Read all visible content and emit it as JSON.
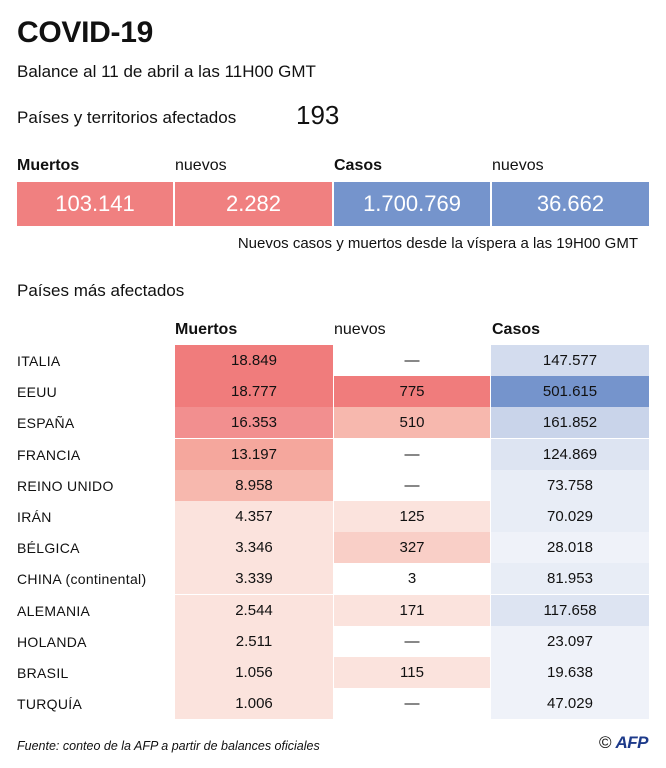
{
  "header": {
    "title": "COVID-19",
    "subtitle": "Balance al 11 de abril a las 11H00 GMT",
    "affected_label": "Países y territorios afectados",
    "affected_value": "193"
  },
  "summary": {
    "deaths_label": "Muertos",
    "deaths_new_label": "nuevos",
    "cases_label": "Casos",
    "cases_new_label": "nuevos",
    "deaths_value": "103.141",
    "deaths_new_value": "2.282",
    "cases_value": "1.700.769",
    "cases_new_value": "36.662",
    "note": "Nuevos casos y muertos desde la víspera a las 19H00 GMT"
  },
  "table": {
    "title": "Países más afectados",
    "columns": [
      "Muertos",
      "nuevos",
      "Casos"
    ],
    "rows": [
      {
        "country": "ITALIA",
        "deaths": "18.849",
        "new": "—",
        "cases": "147.577"
      },
      {
        "country": "EEUU",
        "deaths": "18.777",
        "new": "775",
        "cases": "501.615"
      },
      {
        "country": "ESPAÑA",
        "deaths": "16.353",
        "new": "510",
        "cases": "161.852"
      },
      {
        "country": "FRANCIA",
        "deaths": "13.197",
        "new": "—",
        "cases": "124.869"
      },
      {
        "country": "REINO UNIDO",
        "deaths": "8.958",
        "new": "—",
        "cases": "73.758"
      },
      {
        "country": "IRÁN",
        "deaths": "4.357",
        "new": "125",
        "cases": "70.029"
      },
      {
        "country": "BÉLGICA",
        "deaths": "3.346",
        "new": "327",
        "cases": "28.018"
      },
      {
        "country": "CHINA (continental)",
        "deaths": "3.339",
        "new": "3",
        "cases": "81.953"
      },
      {
        "country": "ALEMANIA",
        "deaths": "2.544",
        "new": "171",
        "cases": "117.658"
      },
      {
        "country": "HOLANDA",
        "deaths": "2.511",
        "new": "—",
        "cases": "23.097"
      },
      {
        "country": "BRASIL",
        "deaths": "1.056",
        "new": "115",
        "cases": "19.638"
      },
      {
        "country": "TURQUÍA",
        "deaths": "1.006",
        "new": "—",
        "cases": "47.029"
      }
    ]
  },
  "colors": {
    "deaths_summary": "#f08080",
    "cases_summary": "#7594cc",
    "deaths_scale": [
      "#f07c7c",
      "#f28f8f",
      "#f5a79d",
      "#f7b8ae",
      "#f9cfc7",
      "#fbe3dd"
    ],
    "cases_scale": [
      "#7594cc",
      "#c9d4ea",
      "#d3dcee",
      "#dde4f2",
      "#e8edf6",
      "#eff2f9"
    ]
  },
  "footer": {
    "source": "Fuente: conteo de la AFP a partir de balances oficiales",
    "logo": "AFP",
    "copyright": "©"
  }
}
